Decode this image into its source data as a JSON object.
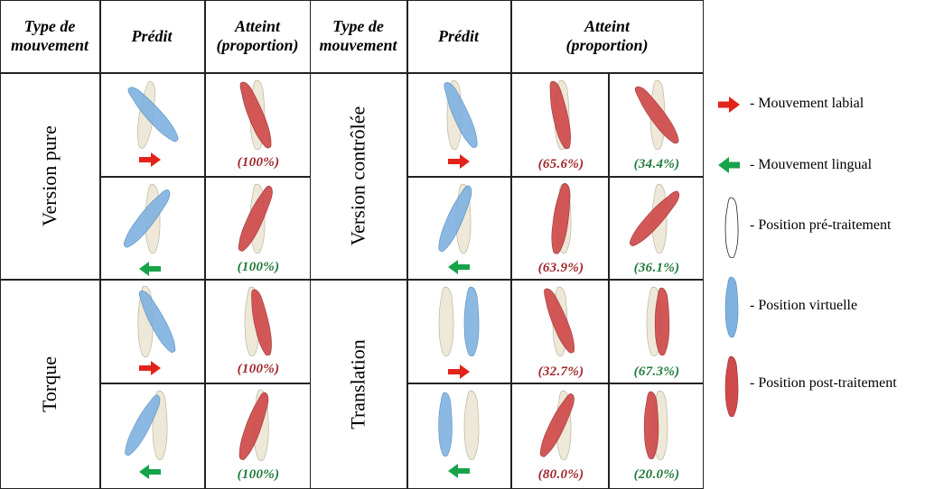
{
  "colors": {
    "labial": "#e2231a",
    "lingual": "#16a34a",
    "pre_fill": "#eee8d8",
    "virtual_fill": "#7fb2e0",
    "post_fill": "#cf4a4a",
    "green_text": "#1f7a3a",
    "red_text": "#a0262a"
  },
  "headers": {
    "type1": "Type de\nmouvement",
    "pred1": "Prédit",
    "att1": "Atteint\n(proportion)",
    "type2": "Type de\nmouvement",
    "pred2": "Prédit",
    "att2": "Atteint\n(proportion)"
  },
  "left": {
    "groups": [
      {
        "label": "Version pure"
      },
      {
        "label": "Torque"
      }
    ],
    "rows": [
      {
        "arrow": "right",
        "attained": "(100%)",
        "color": "red"
      },
      {
        "arrow": "left",
        "attained": "(100%)",
        "color": "green"
      },
      {
        "arrow": "right",
        "attained": "(100%)",
        "color": "red"
      },
      {
        "arrow": "left",
        "attained": "(100%)",
        "color": "green"
      }
    ]
  },
  "right": {
    "groups": [
      {
        "label": "Version contrôlée"
      },
      {
        "label": "Translation"
      }
    ],
    "rows": [
      {
        "arrow": "right",
        "a1": "(65.6%)",
        "a2": "(34.4%)"
      },
      {
        "arrow": "left",
        "a1": "(63.9%)",
        "a2": "(36.1%)"
      },
      {
        "arrow": "right",
        "a1": "(32.7%)",
        "a2": "(67.3%)"
      },
      {
        "arrow": "left",
        "a1": "(80.0%)",
        "a2": "(20.0%)"
      }
    ]
  },
  "legend": [
    {
      "icon": "red-arrow-icon",
      "label": "- Mouvement labial"
    },
    {
      "icon": "green-arrow-icon",
      "label": "- Mouvement lingual"
    },
    {
      "icon": "outline-tooth-icon",
      "label": "- Position pré-traitement"
    },
    {
      "icon": "blue-tooth-icon",
      "label": "- Position virtuelle"
    },
    {
      "icon": "red-tooth-icon",
      "label": "- Position post-traitement"
    }
  ]
}
